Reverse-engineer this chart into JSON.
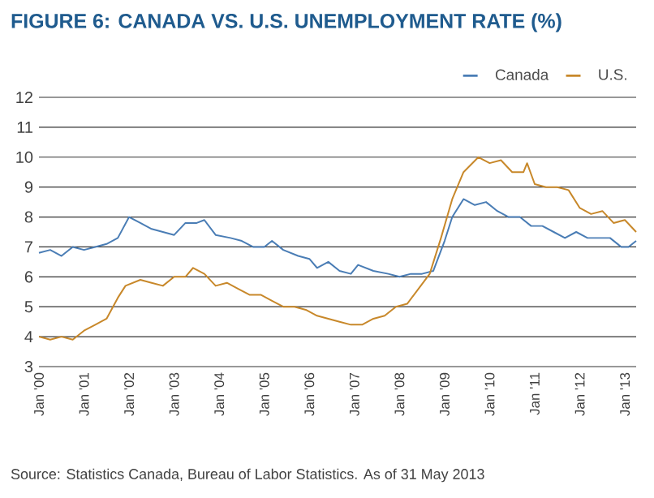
{
  "chart_data": {
    "type": "line",
    "title": "FIGURE 6: CANADA VS. U.S. UNEMPLOYMENT RATE (%)",
    "annotations": [
      "Source: Statistics Canada, Bureau of Labor Statistics. As of 31 May 2013"
    ],
    "xlim": [
      "2000-01",
      "2013-04"
    ],
    "ylim": [
      3,
      12
    ],
    "yticks": [
      3,
      4,
      5,
      6,
      7,
      8,
      9,
      10,
      11,
      12
    ],
    "xticks": [
      {
        "value": "2000-01",
        "label": "Jan '00"
      },
      {
        "value": "2001-01",
        "label": "Jan '01"
      },
      {
        "value": "2002-01",
        "label": "Jan '02"
      },
      {
        "value": "2003-01",
        "label": "Jan '03"
      },
      {
        "value": "2004-01",
        "label": "Jan '04"
      },
      {
        "value": "2005-01",
        "label": "Jan '05"
      },
      {
        "value": "2006-01",
        "label": "Jan '06"
      },
      {
        "value": "2007-01",
        "label": "Jan '07"
      },
      {
        "value": "2008-01",
        "label": "Jan '08"
      },
      {
        "value": "2009-01",
        "label": "Jan '09"
      },
      {
        "value": "2010-01",
        "label": "Jan '10"
      },
      {
        "value": "2011-01",
        "label": "Jan '11"
      },
      {
        "value": "2012-01",
        "label": "Jan '12"
      },
      {
        "value": "2013-01",
        "label": "Jan '13"
      }
    ],
    "grid": "y",
    "legend": "top right",
    "marker": "none",
    "line_style": "solid",
    "series": [
      {
        "name": "Canada",
        "color": "#4a7db5",
        "x": [
          "2000-01",
          "2000-04",
          "2000-07",
          "2000-10",
          "2001-01",
          "2001-04",
          "2001-07",
          "2001-10",
          "2002-01",
          "2002-04",
          "2002-07",
          "2002-10",
          "2003-01",
          "2003-04",
          "2003-07",
          "2003-09",
          "2003-12",
          "2004-04",
          "2004-07",
          "2004-10",
          "2005-01",
          "2005-03",
          "2005-06",
          "2005-10",
          "2006-01",
          "2006-03",
          "2006-06",
          "2006-09",
          "2006-12",
          "2007-02",
          "2007-06",
          "2007-10",
          "2008-01",
          "2008-04",
          "2008-07",
          "2008-10",
          "2009-01",
          "2009-03",
          "2009-06",
          "2009-09",
          "2009-12",
          "2010-03",
          "2010-06",
          "2010-09",
          "2010-12",
          "2011-03",
          "2011-06",
          "2011-09",
          "2011-12",
          "2012-03",
          "2012-06",
          "2012-09",
          "2012-12",
          "2013-02",
          "2013-04"
        ],
        "values": [
          6.8,
          6.9,
          6.7,
          7.0,
          6.9,
          7.0,
          7.1,
          7.3,
          8.0,
          7.8,
          7.6,
          7.5,
          7.4,
          7.8,
          7.8,
          7.9,
          7.4,
          7.3,
          7.2,
          7.0,
          7.0,
          7.2,
          6.9,
          6.7,
          6.6,
          6.3,
          6.5,
          6.2,
          6.1,
          6.4,
          6.2,
          6.1,
          6.0,
          6.1,
          6.1,
          6.2,
          7.2,
          8.0,
          8.6,
          8.4,
          8.5,
          8.2,
          8.0,
          8.0,
          7.7,
          7.7,
          7.5,
          7.3,
          7.5,
          7.3,
          7.3,
          7.3,
          7.0,
          7.0,
          7.2
        ]
      },
      {
        "name": "U.S.",
        "color": "#c8882a",
        "x": [
          "2000-01",
          "2000-04",
          "2000-07",
          "2000-10",
          "2001-01",
          "2001-04",
          "2001-07",
          "2001-10",
          "2001-12",
          "2002-04",
          "2002-07",
          "2002-10",
          "2003-01",
          "2003-04",
          "2003-06",
          "2003-09",
          "2003-12",
          "2004-03",
          "2004-06",
          "2004-09",
          "2004-12",
          "2005-03",
          "2005-06",
          "2005-09",
          "2005-12",
          "2006-03",
          "2006-06",
          "2006-09",
          "2006-12",
          "2007-03",
          "2007-06",
          "2007-09",
          "2007-12",
          "2008-03",
          "2008-06",
          "2008-09",
          "2008-12",
          "2009-03",
          "2009-06",
          "2009-10",
          "2010-01",
          "2010-04",
          "2010-07",
          "2010-10",
          "2010-11",
          "2011-01",
          "2011-04",
          "2011-07",
          "2011-10",
          "2012-01",
          "2012-04",
          "2012-07",
          "2012-10",
          "2013-01",
          "2013-04"
        ],
        "values": [
          4.0,
          3.9,
          4.0,
          3.9,
          4.2,
          4.4,
          4.6,
          5.3,
          5.7,
          5.9,
          5.8,
          5.7,
          6.0,
          6.0,
          6.3,
          6.1,
          5.7,
          5.8,
          5.6,
          5.4,
          5.4,
          5.2,
          5.0,
          5.0,
          4.9,
          4.7,
          4.6,
          4.5,
          4.4,
          4.4,
          4.6,
          4.7,
          5.0,
          5.1,
          5.6,
          6.1,
          7.3,
          8.6,
          9.5,
          10.0,
          9.8,
          9.9,
          9.5,
          9.5,
          9.8,
          9.1,
          9.0,
          9.0,
          8.9,
          8.3,
          8.1,
          8.2,
          7.8,
          7.9,
          7.5
        ]
      }
    ]
  }
}
